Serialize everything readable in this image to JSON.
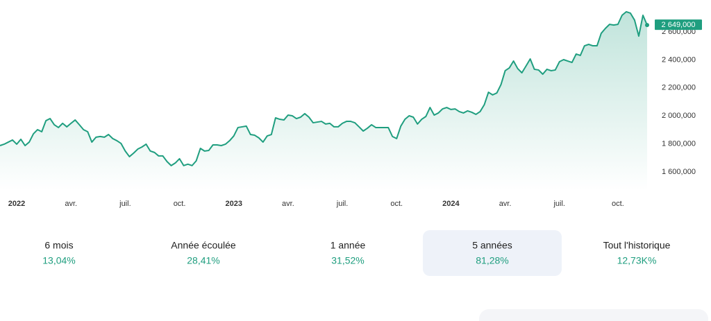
{
  "chart_data": {
    "type": "area",
    "categories": [
      null,
      null,
      null,
      null,
      "2022",
      null,
      null,
      null,
      null,
      null,
      null,
      null,
      null,
      null,
      null,
      null,
      null,
      "avr.",
      null,
      null,
      null,
      null,
      null,
      null,
      null,
      null,
      null,
      null,
      null,
      null,
      "juil.",
      null,
      null,
      null,
      null,
      null,
      null,
      null,
      null,
      null,
      null,
      null,
      null,
      "oct.",
      null,
      null,
      null,
      null,
      null,
      null,
      null,
      null,
      null,
      null,
      null,
      null,
      "2023",
      null,
      null,
      null,
      null,
      null,
      null,
      null,
      null,
      null,
      null,
      null,
      null,
      "avr.",
      null,
      null,
      null,
      null,
      null,
      null,
      null,
      null,
      null,
      null,
      null,
      null,
      "juil.",
      null,
      null,
      null,
      null,
      null,
      null,
      null,
      null,
      null,
      null,
      null,
      null,
      "oct.",
      null,
      null,
      null,
      null,
      null,
      null,
      null,
      null,
      null,
      null,
      null,
      null,
      "2024",
      null,
      null,
      null,
      null,
      null,
      null,
      null,
      null,
      null,
      null,
      null,
      null,
      "avr.",
      null,
      null,
      null,
      null,
      null,
      null,
      null,
      null,
      null,
      null,
      null,
      null,
      "juil.",
      null,
      null,
      null,
      null,
      null,
      null,
      null,
      null,
      null,
      null,
      null,
      null,
      null,
      "oct.",
      null,
      null,
      null,
      null,
      null,
      null,
      null
    ],
    "series": [
      {
        "color": "#1f9e7f",
        "values": [
          1788000,
          1798000,
          1813000,
          1828000,
          1798000,
          1833000,
          1788000,
          1813000,
          1872000,
          1902000,
          1887000,
          1966000,
          1981000,
          1937000,
          1917000,
          1947000,
          1922000,
          1947000,
          1971000,
          1937000,
          1902000,
          1887000,
          1813000,
          1848000,
          1853000,
          1848000,
          1867000,
          1838000,
          1823000,
          1803000,
          1749000,
          1709000,
          1734000,
          1763000,
          1778000,
          1798000,
          1749000,
          1739000,
          1714000,
          1714000,
          1674000,
          1645000,
          1664000,
          1694000,
          1645000,
          1655000,
          1645000,
          1679000,
          1768000,
          1749000,
          1753000,
          1793000,
          1793000,
          1788000,
          1798000,
          1823000,
          1857000,
          1917000,
          1922000,
          1927000,
          1867000,
          1862000,
          1843000,
          1813000,
          1857000,
          1867000,
          1986000,
          1976000,
          1971000,
          2006000,
          2001000,
          1981000,
          1991000,
          2016000,
          1991000,
          1951000,
          1956000,
          1961000,
          1942000,
          1947000,
          1922000,
          1922000,
          1947000,
          1961000,
          1961000,
          1951000,
          1922000,
          1892000,
          1912000,
          1937000,
          1917000,
          1917000,
          1917000,
          1917000,
          1853000,
          1838000,
          1927000,
          1976000,
          2001000,
          1991000,
          1942000,
          1976000,
          1996000,
          2060000,
          2006000,
          2021000,
          2050000,
          2060000,
          2046000,
          2050000,
          2031000,
          2021000,
          2036000,
          2026000,
          2011000,
          2031000,
          2080000,
          2169000,
          2150000,
          2164000,
          2224000,
          2323000,
          2343000,
          2392000,
          2338000,
          2308000,
          2357000,
          2407000,
          2333000,
          2328000,
          2298000,
          2333000,
          2323000,
          2328000,
          2387000,
          2402000,
          2392000,
          2382000,
          2442000,
          2432000,
          2501000,
          2511000,
          2501000,
          2501000,
          2590000,
          2625000,
          2654000,
          2649000,
          2654000,
          2719000,
          2744000,
          2734000,
          2684000,
          2570000,
          2719000,
          2649000
        ]
      }
    ],
    "current_value": {
      "value": 2649000,
      "label": "2 649,000"
    },
    "ylim": [
      1466000,
      2828000
    ],
    "yticks": [
      {
        "value": 1600000,
        "label": "1 600,000"
      },
      {
        "value": 1800000,
        "label": "1 800,000"
      },
      {
        "value": 2000000,
        "label": "2 000,000"
      },
      {
        "value": 2200000,
        "label": "2 200,000"
      },
      {
        "value": 2400000,
        "label": "2 400,000"
      },
      {
        "value": 2600000,
        "label": "2 600,000"
      }
    ],
    "grid": false
  },
  "periods": [
    {
      "label": "6 mois",
      "value": "13,04%"
    },
    {
      "label": "Année écoulée",
      "value": "28,41%"
    },
    {
      "label": "1 année",
      "value": "31,52%"
    },
    {
      "label": "5 années",
      "value": "81,28%"
    },
    {
      "label": "Tout l'historique",
      "value": "12,73K%"
    }
  ],
  "selected_period": 3
}
